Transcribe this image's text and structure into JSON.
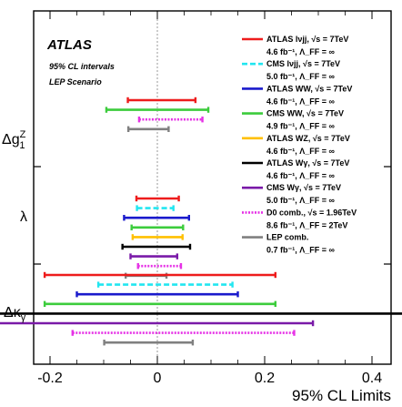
{
  "chart_data": {
    "type": "errorbar-horizontal",
    "experiment": "ATLAS",
    "notes": [
      "95% CL intervals",
      "LEP Scenario"
    ],
    "xlabel": "95% CL Limits",
    "xlim": [
      -0.45,
      0.85
    ],
    "xticks": [
      "-0.4",
      "-0.2",
      "0",
      "0.2",
      "0.4",
      "0.6",
      "0.8"
    ],
    "xtick_values": [
      -0.4,
      -0.2,
      0,
      0.2,
      0.4,
      0.6,
      0.8
    ],
    "groups": [
      {
        "parameter": "Δg1Z",
        "label_main": "Δg",
        "label_sup": "Z",
        "label_sub": "1",
        "intervals": [
          {
            "series": "ATLAS lνjj",
            "low": -0.055,
            "high": 0.071
          },
          {
            "series": "CMS lνjj",
            "low": null,
            "high": null
          },
          {
            "series": "ATLAS WW",
            "low": null,
            "high": null
          },
          {
            "series": "CMS WW",
            "low": -0.095,
            "high": 0.095
          },
          {
            "series": "ATLAS WZ",
            "low": null,
            "high": null
          },
          {
            "series": "ATLAS Wγ",
            "low": null,
            "high": null
          },
          {
            "series": "CMS Wγ",
            "low": null,
            "high": null
          },
          {
            "series": "D0 comb.",
            "low": -0.034,
            "high": 0.084
          },
          {
            "series": "LEP comb.",
            "low": -0.054,
            "high": 0.021
          }
        ]
      },
      {
        "parameter": "λ",
        "label_main": "λ",
        "label_sup": "",
        "label_sub": "",
        "intervals": [
          {
            "series": "ATLAS lνjj",
            "low": -0.039,
            "high": 0.04
          },
          {
            "series": "CMS lνjj",
            "low": -0.038,
            "high": 0.03
          },
          {
            "series": "ATLAS WW",
            "low": -0.062,
            "high": 0.059
          },
          {
            "series": "CMS WW",
            "low": -0.048,
            "high": 0.048
          },
          {
            "series": "ATLAS WZ",
            "low": -0.046,
            "high": 0.047
          },
          {
            "series": "ATLAS Wγ",
            "low": -0.065,
            "high": 0.061
          },
          {
            "series": "CMS Wγ",
            "low": -0.05,
            "high": 0.037
          },
          {
            "series": "D0 comb.",
            "low": -0.036,
            "high": 0.044
          },
          {
            "series": "LEP comb.",
            "low": -0.059,
            "high": 0.017
          }
        ]
      },
      {
        "parameter": "Δκγ",
        "label_main": "Δκ",
        "label_sup": "",
        "label_sub": "γ",
        "intervals": [
          {
            "series": "ATLAS lνjj",
            "low": -0.21,
            "high": 0.22
          },
          {
            "series": "CMS lνjj",
            "low": -0.11,
            "high": 0.14
          },
          {
            "series": "ATLAS WW",
            "low": -0.15,
            "high": 0.15
          },
          {
            "series": "CMS WW",
            "low": -0.21,
            "high": 0.22
          },
          {
            "series": "ATLAS WZ",
            "low": null,
            "high": null
          },
          {
            "series": "ATLAS Wγ",
            "low": -0.41,
            "high": 0.46
          },
          {
            "series": "CMS Wγ",
            "low": -0.38,
            "high": 0.29
          },
          {
            "series": "D0 comb.",
            "low": -0.158,
            "high": 0.255
          },
          {
            "series": "LEP comb.",
            "low": -0.099,
            "high": 0.066
          }
        ]
      }
    ],
    "series": [
      {
        "name": "ATLAS lνjj, √s = 7TeV",
        "lumi": "4.6 fb⁻¹, Λ_FF = ∞",
        "color": "#ee1c1c",
        "style": "solid"
      },
      {
        "name": "CMS lνjj, √s = 7TeV",
        "lumi": "5.0 fb⁻¹, Λ_FF = ∞",
        "color": "#22e6f0",
        "style": "dashed"
      },
      {
        "name": "ATLAS WW, √s = 7TeV",
        "lumi": "4.6 fb⁻¹, Λ_FF = ∞",
        "color": "#1a1acc",
        "style": "solid"
      },
      {
        "name": "CMS WW, √s = 7TeV",
        "lumi": "4.9 fb⁻¹, Λ_FF = ∞",
        "color": "#3ccc3c",
        "style": "solid"
      },
      {
        "name": "ATLAS WZ, √s = 7TeV",
        "lumi": "4.6 fb⁻¹, Λ_FF = ∞",
        "color": "#ffc000",
        "style": "solid"
      },
      {
        "name": "ATLAS Wγ, √s = 7TeV",
        "lumi": "4.6 fb⁻¹, Λ_FF = ∞",
        "color": "#000000",
        "style": "solid"
      },
      {
        "name": "CMS Wγ, √s = 7TeV",
        "lumi": "5.0 fb⁻¹, Λ_FF = ∞",
        "color": "#7a1aa8",
        "style": "solid"
      },
      {
        "name": "D0 comb., √s = 1.96TeV",
        "lumi": "8.6 fb⁻¹, Λ_FF = 2TeV",
        "color": "#e632e6",
        "style": "dotted"
      },
      {
        "name": "LEP comb.",
        "lumi": "0.7 fb⁻¹, Λ_FF = ∞",
        "color": "#808080",
        "style": "solid"
      }
    ]
  }
}
